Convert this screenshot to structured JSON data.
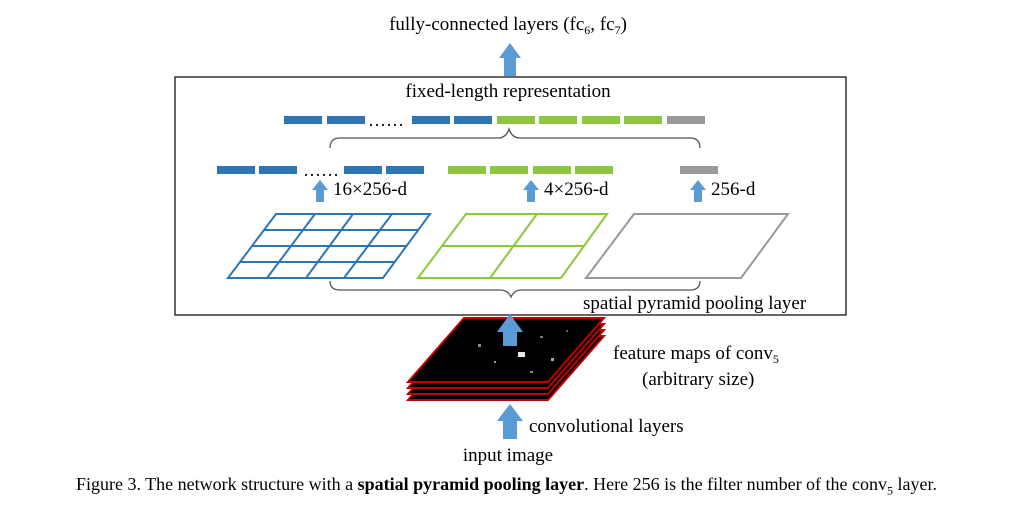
{
  "labels": {
    "fc_prefix": "fully-connected layers (fc",
    "fc_sub1": "6",
    "fc_mid": ", fc",
    "fc_sub2": "7",
    "fc_suffix": ")",
    "fixed_length": "fixed-length representation",
    "dots_top": "……",
    "dots_mid": "……",
    "dim_16": "16×256-d",
    "dim_4": "4×256-d",
    "dim_1": "256-d",
    "spp_layer": "spatial pyramid pooling layer",
    "feature_maps_prefix": "feature maps of conv",
    "feature_maps_sub": "5",
    "arbitrary_size": "(arbitrary size)",
    "conv_layers": "convolutional layers",
    "input_image": "input image"
  },
  "caption": {
    "prefix": "Figure 3. The network structure with a ",
    "bold": "spatial pyramid pooling layer",
    "middle": ". Here 256 is the filter number of the conv",
    "sub": "5",
    "suffix": " layer."
  },
  "colors": {
    "blue": "#2E75B6",
    "green": "#8DC63F",
    "gray": "#999999",
    "arrow": "#5B9BD5",
    "feature_map_border": "#C00000",
    "feature_map_fill": "#000000"
  }
}
